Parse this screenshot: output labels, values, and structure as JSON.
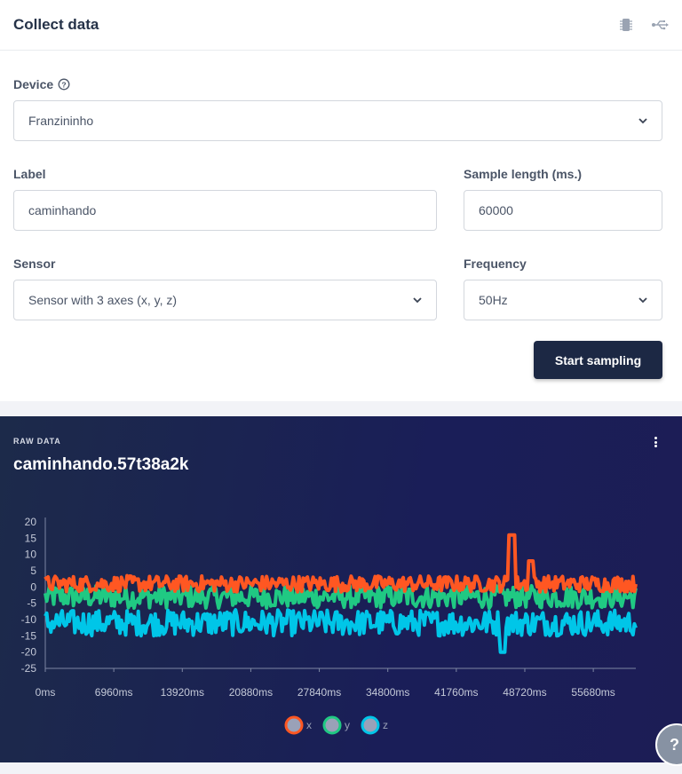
{
  "header": {
    "title": "Collect data",
    "icons": [
      "chip-icon",
      "usb-icon"
    ]
  },
  "form": {
    "device_label": "Device",
    "device_value": "Franzininho",
    "label_label": "Label",
    "label_value": "caminhando",
    "sample_length_label": "Sample length (ms.)",
    "sample_length_value": "60000",
    "sensor_label": "Sensor",
    "sensor_value": "Sensor with 3 axes (x, y, z)",
    "frequency_label": "Frequency",
    "frequency_value": "50Hz",
    "start_button": "Start sampling"
  },
  "raw_data": {
    "caption": "RAW DATA",
    "title": "caminhando.57t38a2k"
  },
  "chart_data": {
    "type": "line",
    "y_ticks": [
      "20",
      "15",
      "10",
      "5",
      "0",
      "-5",
      "-10",
      "-15",
      "-20",
      "-25"
    ],
    "x_ticks": [
      "0ms",
      "6960ms",
      "13920ms",
      "20880ms",
      "27840ms",
      "34800ms",
      "41760ms",
      "48720ms",
      "55680ms"
    ],
    "ylim": [
      -25,
      20
    ],
    "xlim": [
      0,
      60000
    ],
    "grid": false,
    "legend_position": "bottom",
    "series": [
      {
        "name": "x",
        "color": "#ff5722",
        "mean": 1.0,
        "noise": 2.5
      },
      {
        "name": "y",
        "color": "#20c983",
        "mean": -3.0,
        "noise": 3.5
      },
      {
        "name": "z",
        "color": "#00c6e8",
        "mean": -11.0,
        "noise": 4.0
      }
    ]
  },
  "help": {
    "label": "?"
  }
}
